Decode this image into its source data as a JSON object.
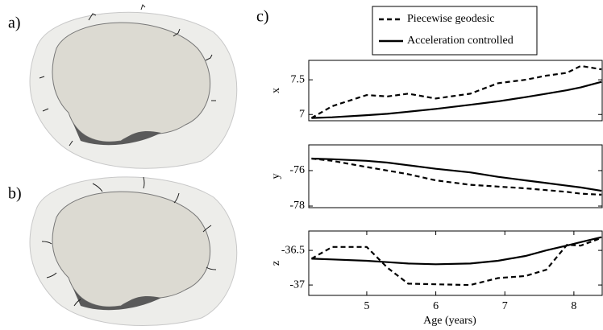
{
  "panel_labels": [
    "a)",
    "b)",
    "c)"
  ],
  "chart_data": [
    {
      "type": "line",
      "ylabel": "x",
      "xlim": [
        4.16,
        8.41
      ],
      "ylim": [
        6.91,
        7.78
      ],
      "yticks": [
        7,
        7.5
      ],
      "x": [
        4.2,
        4.5,
        5.0,
        5.3,
        5.6,
        6.0,
        6.5,
        6.9,
        7.3,
        7.6,
        7.9,
        8.1,
        8.4
      ],
      "legend": "top",
      "series": [
        {
          "name": "Piecewise geodesic",
          "color": "#000000",
          "style": "dashed",
          "values": [
            6.95,
            7.12,
            7.28,
            7.26,
            7.3,
            7.23,
            7.3,
            7.45,
            7.5,
            7.56,
            7.6,
            7.7,
            7.65
          ]
        },
        {
          "name": "Acceleration controlled",
          "color": "#000000",
          "style": "solid",
          "values": [
            6.95,
            6.96,
            6.99,
            7.01,
            7.04,
            7.08,
            7.14,
            7.19,
            7.25,
            7.3,
            7.35,
            7.39,
            7.47
          ]
        }
      ]
    },
    {
      "type": "line",
      "ylabel": "y",
      "xlim": [
        4.16,
        8.41
      ],
      "ylim": [
        -78.09,
        -74.55
      ],
      "yticks": [
        -78,
        -76
      ],
      "x": [
        4.2,
        4.5,
        5.0,
        5.3,
        5.6,
        6.0,
        6.5,
        6.9,
        7.3,
        7.6,
        7.9,
        8.1,
        8.4
      ],
      "series": [
        {
          "color": "#000000",
          "style": "dashed",
          "values": [
            -75.32,
            -75.45,
            -75.8,
            -76.0,
            -76.2,
            -76.55,
            -76.8,
            -76.9,
            -77.0,
            -77.1,
            -77.2,
            -77.3,
            -77.36
          ]
        },
        {
          "color": "#000000",
          "style": "solid",
          "values": [
            -75.32,
            -75.36,
            -75.45,
            -75.55,
            -75.7,
            -75.9,
            -76.1,
            -76.35,
            -76.55,
            -76.7,
            -76.85,
            -76.95,
            -77.14
          ]
        }
      ]
    },
    {
      "type": "line",
      "ylabel": "z",
      "xlabel": "Age (years)",
      "xlim": [
        4.16,
        8.41
      ],
      "xticks": [
        5,
        6,
        7,
        8
      ],
      "ylim": [
        -37.15,
        -36.22
      ],
      "yticks": [
        -37,
        -36.5
      ],
      "x": [
        4.2,
        4.5,
        5.0,
        5.3,
        5.6,
        6.0,
        6.5,
        6.9,
        7.3,
        7.6,
        7.9,
        8.1,
        8.4
      ],
      "series": [
        {
          "color": "#000000",
          "style": "dashed",
          "values": [
            -36.62,
            -36.45,
            -36.45,
            -36.75,
            -36.98,
            -36.99,
            -37.0,
            -36.9,
            -36.87,
            -36.78,
            -36.42,
            -36.43,
            -36.32
          ]
        },
        {
          "color": "#000000",
          "style": "solid",
          "values": [
            -36.62,
            -36.63,
            -36.65,
            -36.67,
            -36.69,
            -36.7,
            -36.69,
            -36.65,
            -36.58,
            -36.5,
            -36.43,
            -36.38,
            -36.31
          ]
        }
      ]
    }
  ]
}
